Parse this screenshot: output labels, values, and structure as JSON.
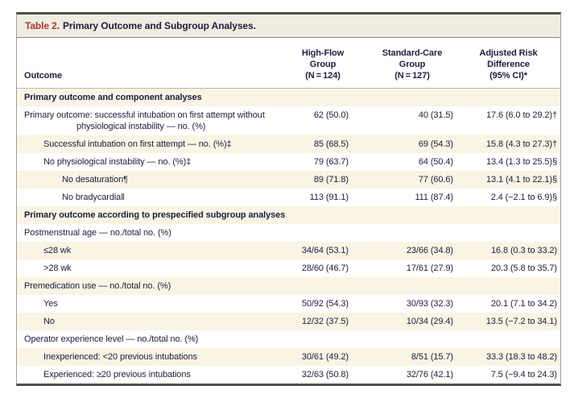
{
  "title": {
    "label": "Table 2.",
    "text": "Primary Outcome and Subgroup Analyses."
  },
  "header": {
    "outcome": "Outcome",
    "highflow": "High-Flow\nGroup\n(N = 124)",
    "standardcare": "Standard-Care\nGroup\n(N = 127)",
    "riskdiff": "Adjusted Risk\nDifference\n(95% CI)*"
  },
  "rows": [
    {
      "type": "section",
      "indent": 0,
      "label": "Primary outcome and component analyses",
      "hf": "",
      "sc": "",
      "ard": ""
    },
    {
      "type": "data",
      "indent": 0,
      "label": "Primary outcome: successful intubation on first attempt without physiological instability — no. (%)",
      "hf": "62 (50.0)",
      "sc": "40 (31.5)",
      "ard": "17.6 (6.0 to 29.2)†"
    },
    {
      "type": "data",
      "indent": 1,
      "label": "Successful intubation on first attempt — no. (%)‡",
      "hf": "85 (68.5)",
      "sc": "69 (54.3)",
      "ard": "15.8 (4.3 to 27.3)†"
    },
    {
      "type": "data",
      "indent": 1,
      "label": "No physiological instability — no. (%)‡",
      "hf": "79 (63.7)",
      "sc": "64 (50.4)",
      "ard": "13.4 (1.3 to 25.5)§"
    },
    {
      "type": "data",
      "indent": 2,
      "label": "No desaturation¶",
      "hf": "89 (71.8)",
      "sc": "77 (60.6)",
      "ard": "13.1 (4.1 to 22.1)§"
    },
    {
      "type": "data",
      "indent": 2,
      "label": "No bradycardia‖",
      "hf": "113 (91.1)",
      "sc": "111 (87.4)",
      "ard": "2.4 (−2.1 to 6.9)§"
    },
    {
      "type": "section",
      "indent": 0,
      "label": "Primary outcome according to prespecified subgroup analyses",
      "hf": "",
      "sc": "",
      "ard": ""
    },
    {
      "type": "data",
      "indent": 0,
      "label": "Postmenstrual age — no./total no. (%)",
      "hf": "",
      "sc": "",
      "ard": ""
    },
    {
      "type": "data",
      "indent": 1,
      "label": "≤28 wk",
      "hf": "34/64 (53.1)",
      "sc": "23/66 (34.8)",
      "ard": "16.8 (0.3 to 33.2)"
    },
    {
      "type": "data",
      "indent": 1,
      "label": ">28 wk",
      "hf": "28/60 (46.7)",
      "sc": "17/61 (27.9)",
      "ard": "20.3 (5.8 to 35.7)"
    },
    {
      "type": "data",
      "indent": 0,
      "label": "Premedication use — no./total no. (%)",
      "hf": "",
      "sc": "",
      "ard": ""
    },
    {
      "type": "data",
      "indent": 1,
      "label": "Yes",
      "hf": "50/92 (54.3)",
      "sc": "30/93 (32.3)",
      "ard": "20.1 (7.1 to 34.2)"
    },
    {
      "type": "data",
      "indent": 1,
      "label": "No",
      "hf": "12/32 (37.5)",
      "sc": "10/34 (29.4)",
      "ard": "13.5 (−7.2 to 34.1)"
    },
    {
      "type": "data",
      "indent": 0,
      "label": "Operator experience level — no./total no. (%)",
      "hf": "",
      "sc": "",
      "ard": ""
    },
    {
      "type": "data",
      "indent": 1,
      "label": "Inexperienced: <20 previous intubations",
      "hf": "30/61 (49.2)",
      "sc": "8/51 (15.7)",
      "ard": "33.3 (18.3 to 48.2)"
    },
    {
      "type": "data",
      "indent": 1,
      "label": "Experienced: ≥20 previous intubations",
      "hf": "32/63 (50.8)",
      "sc": "32/76 (42.1)",
      "ard": "7.5 (−9.4 to 24.3)"
    }
  ],
  "colors": {
    "accent_red": "#ad372e",
    "row_stripe": "#f9f4e4",
    "title_bar_bg": "#efece2",
    "text": "#20203f",
    "rule_dark": "#504f4b",
    "rule_light": "#a09e94"
  }
}
